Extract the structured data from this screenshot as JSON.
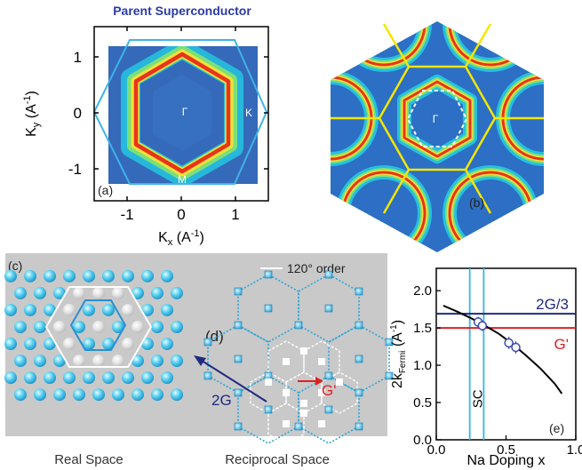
{
  "panel_a": {
    "title": "Parent Superconductor",
    "label": "(a)",
    "gamma": "Γ",
    "k_label": "K",
    "m_label": "M",
    "y_axis": {
      "base": "K",
      "sub": "y",
      "unit": " (A",
      "sup": "-1",
      "close": ")"
    },
    "x_axis": {
      "base": "K",
      "sub": "x",
      "unit": " (A",
      "sup": "-1",
      "close": ")"
    },
    "y_ticks": [
      "1",
      "0",
      "-1"
    ],
    "x_ticks": [
      "-1",
      "0",
      "1"
    ],
    "colors": {
      "ring_outer": "#19c8e6",
      "hexagon": "#3fb4e6",
      "background": "#3a6fbf"
    }
  },
  "panel_b": {
    "label": "(b)",
    "gamma": "Γ",
    "colors": {
      "zone_lines": "#f5e600",
      "fill": "#2c6fc4"
    }
  },
  "panel_c": {
    "label": "(c)",
    "caption": "Real Space"
  },
  "panel_d": {
    "label": "(d)",
    "caption": "Reciprocal Space",
    "legend": "120° order",
    "vector_2g": "2G",
    "vector_g_prime": "G'"
  },
  "chart_data": {
    "type": "line",
    "label": "(e)",
    "xlabel": "Na Doping x",
    "ylabel_base": "2k",
    "ylabel_sub": "Fermi",
    "ylabel_unit": " (A",
    "ylabel_sup": "-1",
    "ylabel_close": ")",
    "xlim": [
      0.0,
      1.0
    ],
    "ylim": [
      0.0,
      2.3
    ],
    "x_ticks": [
      "0.0",
      "0.5",
      "1.0"
    ],
    "y_ticks": [
      "0.0",
      "0.5",
      "1.0",
      "1.5",
      "2.0"
    ],
    "x_tick_values": [
      0.0,
      0.5,
      1.0
    ],
    "y_tick_values": [
      0.0,
      0.5,
      1.0,
      1.5,
      2.0
    ],
    "hlines": [
      {
        "name": "2G/3",
        "y": 1.69,
        "color": "#1f2a80"
      },
      {
        "name": "G'",
        "y": 1.5,
        "color": "#e02020"
      }
    ],
    "vlines": [
      {
        "x": 0.24,
        "color": "#33b8e6"
      },
      {
        "x": 0.34,
        "color": "#33b8e6"
      }
    ],
    "sc_label": "SC",
    "curve": {
      "x": [
        0.05,
        0.15,
        0.25,
        0.35,
        0.45,
        0.55,
        0.65,
        0.75,
        0.85,
        0.9
      ],
      "y": [
        1.8,
        1.72,
        1.63,
        1.53,
        1.42,
        1.28,
        1.12,
        0.95,
        0.75,
        0.62
      ]
    },
    "points": {
      "x": [
        0.3,
        0.33,
        0.52,
        0.57
      ],
      "y": [
        1.58,
        1.53,
        1.3,
        1.24
      ],
      "err": [
        0.07,
        0.07,
        0.08,
        0.08
      ]
    }
  }
}
